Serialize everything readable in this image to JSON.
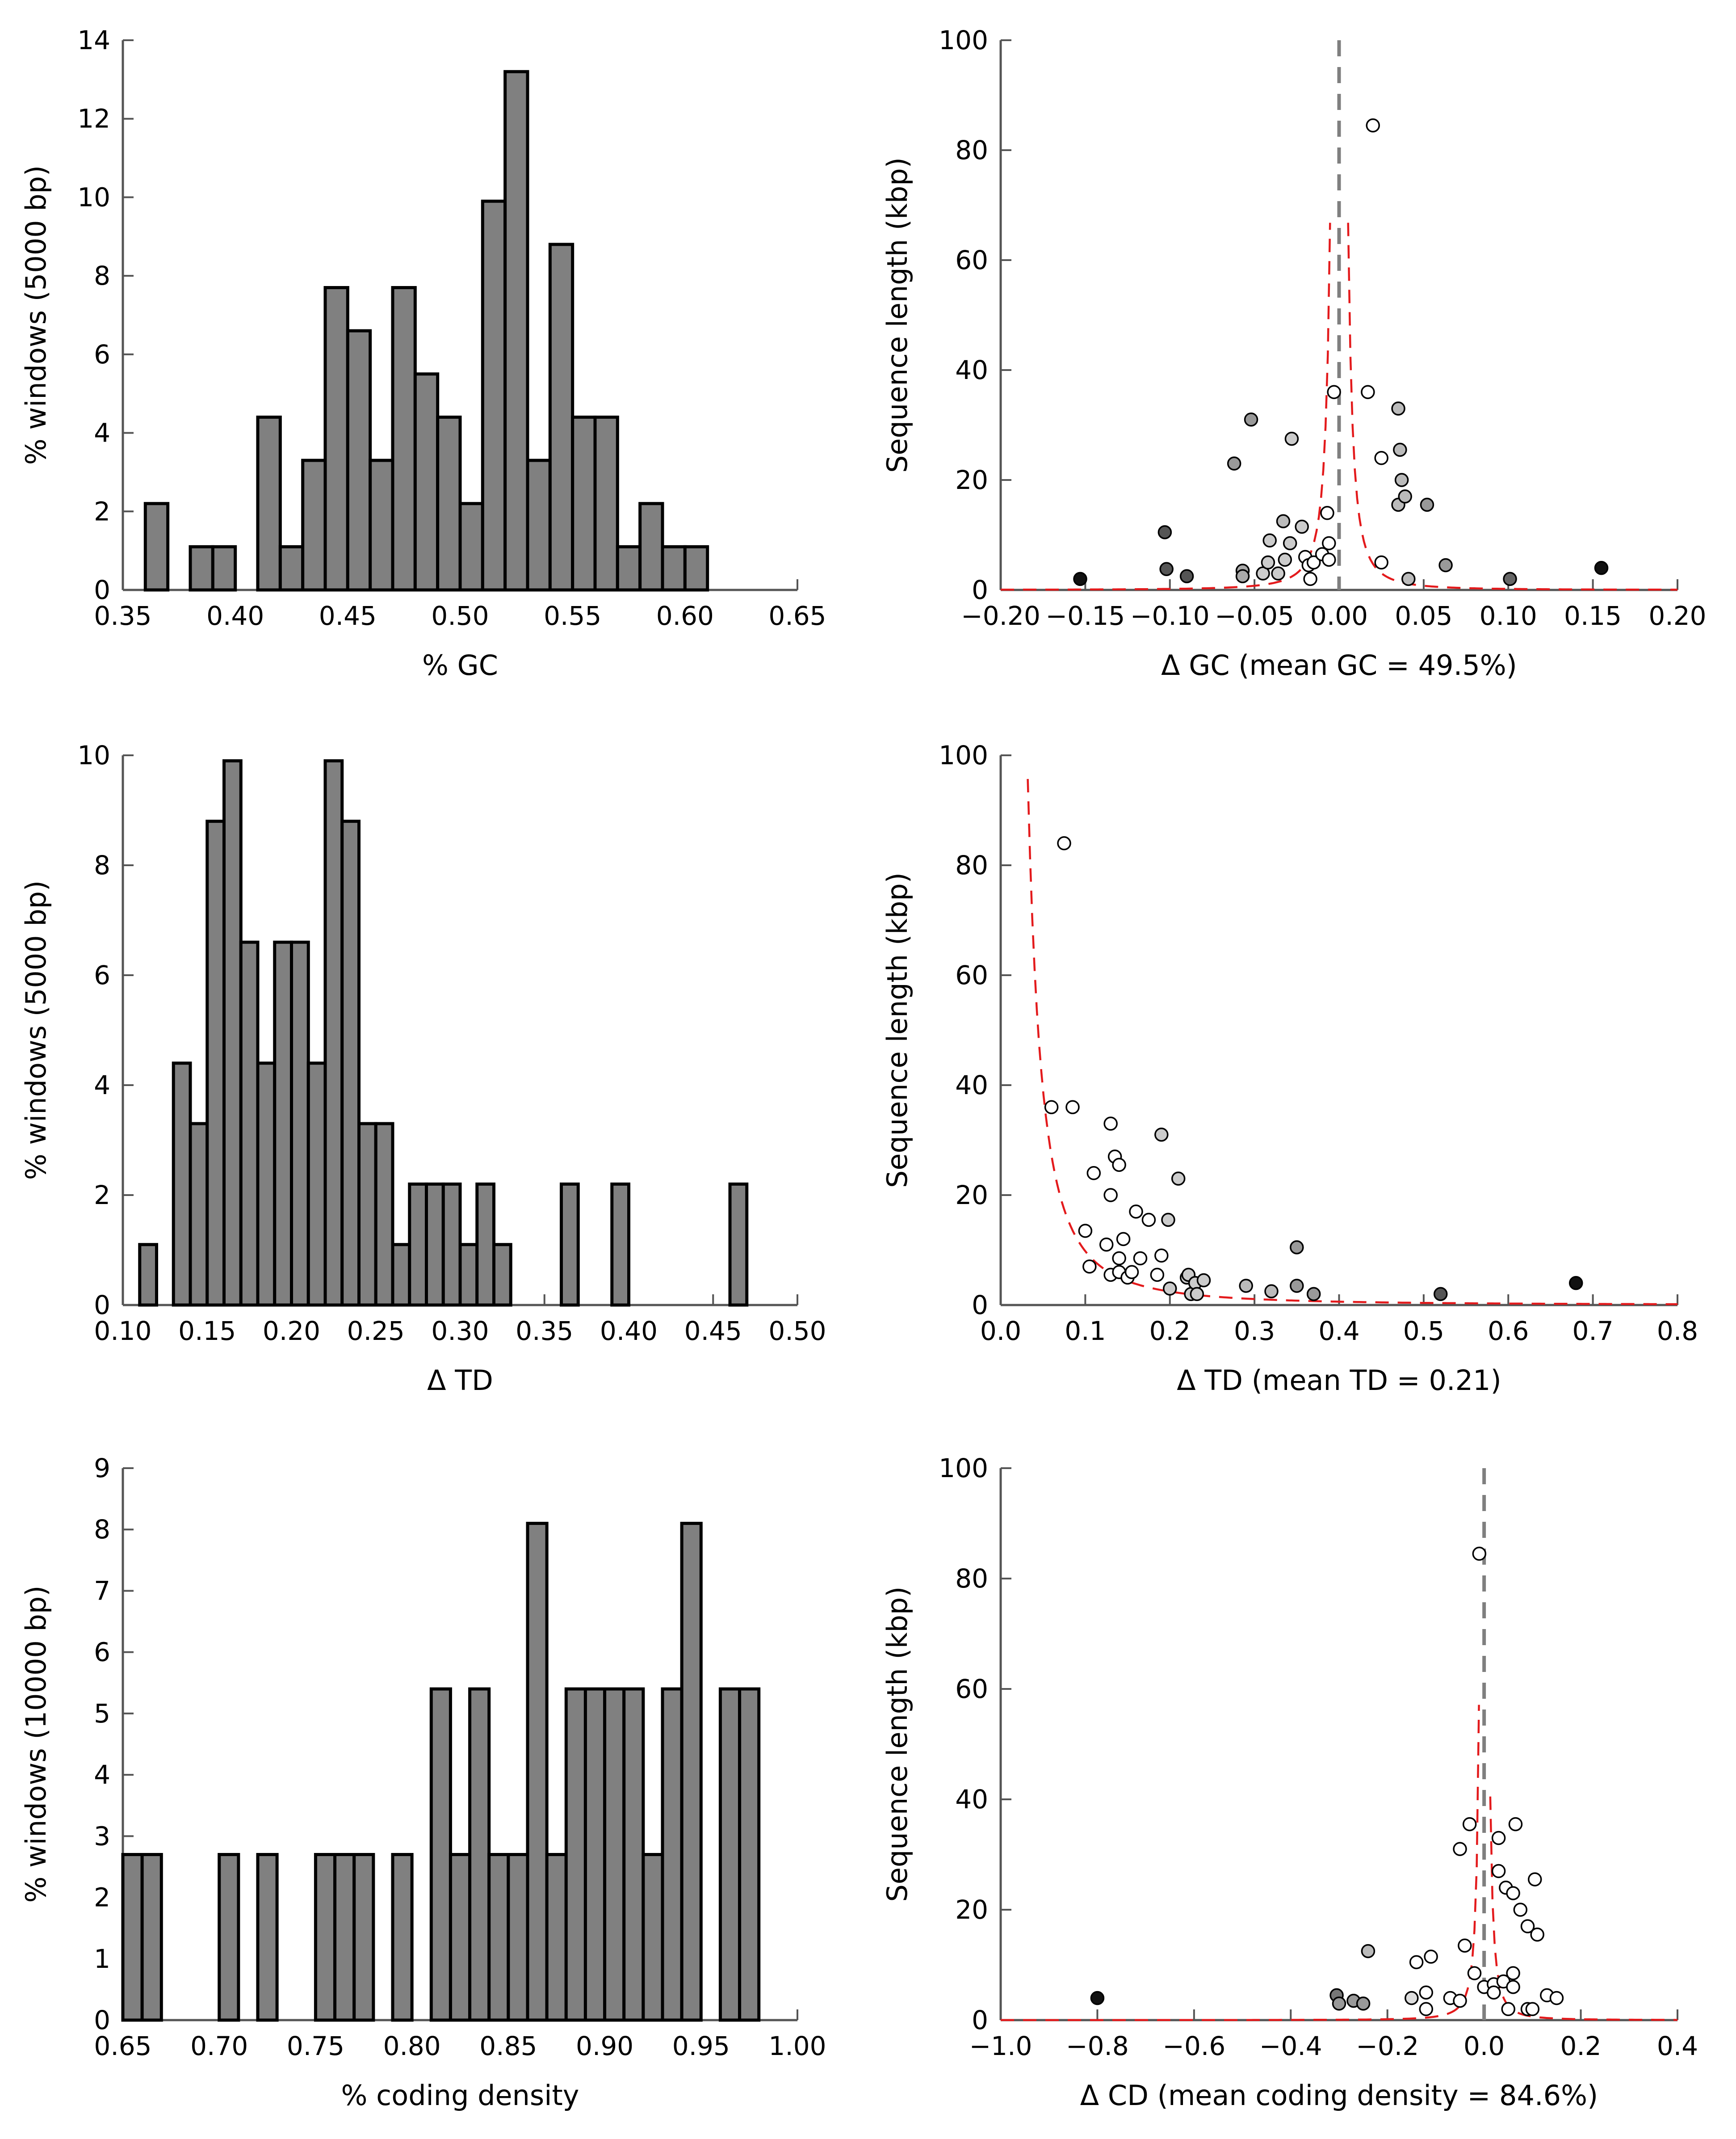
{
  "chart_data": [
    {
      "type": "bar",
      "panel": "a",
      "xlabel": "% GC",
      "ylabel": "% windows (5000 bp)",
      "xlim": [
        0.35,
        0.65
      ],
      "ylim": [
        0,
        14
      ],
      "xticks": [
        "0.35",
        "0.40",
        "0.45",
        "0.50",
        "0.55",
        "0.60",
        "0.65"
      ],
      "yticks": [
        "0",
        "2",
        "4",
        "6",
        "8",
        "10",
        "12",
        "14"
      ],
      "bin_width": 0.01,
      "bin_starts": [
        0.36,
        0.37,
        0.38,
        0.39,
        0.4,
        0.41,
        0.42,
        0.43,
        0.44,
        0.45,
        0.46,
        0.47,
        0.48,
        0.49,
        0.5,
        0.51,
        0.52,
        0.53,
        0.54,
        0.55,
        0.56,
        0.57,
        0.58,
        0.59,
        0.6
      ],
      "values": [
        2.2,
        0,
        1.1,
        1.1,
        0,
        4.4,
        1.1,
        3.3,
        7.7,
        6.6,
        3.3,
        7.7,
        5.5,
        4.4,
        2.2,
        9.9,
        13.2,
        3.3,
        8.8,
        4.4,
        4.4,
        1.1,
        2.2,
        1.1,
        1.1
      ],
      "bar_color": "#808080"
    },
    {
      "type": "scatter",
      "panel": "b",
      "xlabel": "Δ GC (mean GC = 49.5%)",
      "ylabel": "Sequence length (kbp)",
      "xlim": [
        -0.2,
        0.2
      ],
      "ylim": [
        0,
        100
      ],
      "xticks": [
        "−0.20",
        "−0.15",
        "−0.10",
        "−0.05",
        "0.00",
        "0.05",
        "0.10",
        "0.15",
        "0.20"
      ],
      "yticks": [
        "0",
        "20",
        "40",
        "60",
        "80",
        "100"
      ],
      "vline_x": 0,
      "curve": {
        "type": "symmetric",
        "k": 1.9,
        "offset": 0.0,
        "ymax": 97,
        "color": "#e31a1c"
      },
      "points": [
        [
          -0.153,
          2,
          "#111111"
        ],
        [
          -0.103,
          10.5,
          "#555555"
        ],
        [
          -0.102,
          3.8,
          "#555555"
        ],
        [
          -0.09,
          2.5,
          "#555555"
        ],
        [
          -0.062,
          23,
          "#999999"
        ],
        [
          -0.057,
          3.5,
          "#aaaaaa"
        ],
        [
          -0.057,
          2.5,
          "#aaaaaa"
        ],
        [
          -0.052,
          31,
          "#999999"
        ],
        [
          -0.045,
          3,
          "#cccccc"
        ],
        [
          -0.042,
          5,
          "#cccccc"
        ],
        [
          -0.041,
          9,
          "#cccccc"
        ],
        [
          -0.036,
          3,
          "#cccccc"
        ],
        [
          -0.033,
          12.5,
          "#bbbbbb"
        ],
        [
          -0.032,
          5.5,
          "#cccccc"
        ],
        [
          -0.029,
          8.5,
          "#cccccc"
        ],
        [
          -0.028,
          27.5,
          "#cccccc"
        ],
        [
          -0.022,
          11.5,
          "#cccccc"
        ],
        [
          -0.02,
          6,
          "#ffffff"
        ],
        [
          -0.018,
          4.5,
          "#ffffff"
        ],
        [
          -0.017,
          2,
          "#ffffff"
        ],
        [
          -0.015,
          5,
          "#ffffff"
        ],
        [
          -0.01,
          6.5,
          "#ffffff"
        ],
        [
          -0.007,
          14,
          "#ffffff"
        ],
        [
          -0.006,
          5.5,
          "#ffffff"
        ],
        [
          -0.006,
          8.5,
          "#ffffff"
        ],
        [
          -0.003,
          36,
          "#ffffff"
        ],
        [
          0.017,
          36,
          "#ffffff"
        ],
        [
          0.02,
          84.5,
          "#ffffff"
        ],
        [
          0.025,
          24,
          "#ffffff"
        ],
        [
          0.025,
          5,
          "#ffffff"
        ],
        [
          0.035,
          33,
          "#bbbbbb"
        ],
        [
          0.035,
          15.5,
          "#bbbbbb"
        ],
        [
          0.036,
          25.5,
          "#bbbbbb"
        ],
        [
          0.037,
          20,
          "#bbbbbb"
        ],
        [
          0.039,
          17,
          "#bbbbbb"
        ],
        [
          0.041,
          2,
          "#bbbbbb"
        ],
        [
          0.052,
          15.5,
          "#999999"
        ],
        [
          0.063,
          4.5,
          "#999999"
        ],
        [
          0.101,
          2,
          "#666666"
        ],
        [
          0.155,
          4,
          "#111111"
        ]
      ]
    },
    {
      "type": "bar",
      "panel": "c",
      "xlabel": "Δ TD",
      "ylabel": "% windows (5000 bp)",
      "xlim": [
        0.1,
        0.5
      ],
      "ylim": [
        0,
        10
      ],
      "xticks": [
        "0.10",
        "0.15",
        "0.20",
        "0.25",
        "0.30",
        "0.35",
        "0.40",
        "0.45",
        "0.50"
      ],
      "yticks": [
        "0",
        "2",
        "4",
        "6",
        "8",
        "10"
      ],
      "bin_width": 0.01,
      "bin_starts": [
        0.11,
        0.12,
        0.13,
        0.14,
        0.15,
        0.16,
        0.17,
        0.18,
        0.19,
        0.2,
        0.21,
        0.22,
        0.23,
        0.24,
        0.25,
        0.26,
        0.27,
        0.28,
        0.29,
        0.3,
        0.31,
        0.32,
        0.33,
        0.34,
        0.35,
        0.36,
        0.37,
        0.38,
        0.39,
        0.4,
        0.41,
        0.42,
        0.43,
        0.44,
        0.45,
        0.46
      ],
      "values": [
        1.1,
        0,
        4.4,
        3.3,
        8.8,
        9.9,
        6.6,
        4.4,
        6.6,
        6.6,
        4.4,
        9.9,
        8.8,
        3.3,
        3.3,
        1.1,
        2.2,
        2.2,
        2.2,
        1.1,
        2.2,
        1.1,
        0,
        0,
        0,
        2.2,
        0,
        0,
        2.2,
        0,
        0,
        0,
        0,
        0,
        0,
        2.2
      ],
      "bar_color": "#808080"
    },
    {
      "type": "scatter",
      "panel": "d",
      "xlabel": "Δ TD (mean TD = 0.21)",
      "ylabel": "Sequence length (kbp)",
      "xlim": [
        0.0,
        0.8
      ],
      "ylim": [
        0,
        100
      ],
      "xticks": [
        "0.0",
        "0.1",
        "0.2",
        "0.3",
        "0.4",
        "0.5",
        "0.6",
        "0.7",
        "0.8"
      ],
      "yticks": [
        "0",
        "20",
        "40",
        "60",
        "80",
        "100"
      ],
      "curve": {
        "type": "one-sided",
        "k": 9.8,
        "offset": 0.0,
        "ymax": 98,
        "color": "#e31a1c"
      },
      "points": [
        [
          0.06,
          36,
          "#ffffff"
        ],
        [
          0.075,
          84,
          "#ffffff"
        ],
        [
          0.085,
          36,
          "#ffffff"
        ],
        [
          0.1,
          13.5,
          "#ffffff"
        ],
        [
          0.105,
          7,
          "#ffffff"
        ],
        [
          0.11,
          24,
          "#ffffff"
        ],
        [
          0.125,
          11,
          "#ffffff"
        ],
        [
          0.13,
          33,
          "#ffffff"
        ],
        [
          0.13,
          20,
          "#ffffff"
        ],
        [
          0.135,
          27,
          "#ffffff"
        ],
        [
          0.14,
          25.5,
          "#ffffff"
        ],
        [
          0.13,
          5.5,
          "#ffffff"
        ],
        [
          0.14,
          8.5,
          "#ffffff"
        ],
        [
          0.14,
          6,
          "#ffffff"
        ],
        [
          0.145,
          12,
          "#ffffff"
        ],
        [
          0.15,
          5,
          "#ffffff"
        ],
        [
          0.155,
          6,
          "#ffffff"
        ],
        [
          0.16,
          17,
          "#ffffff"
        ],
        [
          0.165,
          8.5,
          "#ffffff"
        ],
        [
          0.175,
          15.5,
          "#ffffff"
        ],
        [
          0.185,
          5.5,
          "#ffffff"
        ],
        [
          0.19,
          9,
          "#ffffff"
        ],
        [
          0.19,
          31,
          "#cccccc"
        ],
        [
          0.198,
          15.5,
          "#cccccc"
        ],
        [
          0.2,
          3,
          "#cccccc"
        ],
        [
          0.21,
          23,
          "#cccccc"
        ],
        [
          0.22,
          5,
          "#cccccc"
        ],
        [
          0.222,
          5.5,
          "#cccccc"
        ],
        [
          0.225,
          2,
          "#cccccc"
        ],
        [
          0.23,
          4,
          "#cccccc"
        ],
        [
          0.232,
          2,
          "#cccccc"
        ],
        [
          0.24,
          4.5,
          "#cccccc"
        ],
        [
          0.29,
          3.5,
          "#bbbbbb"
        ],
        [
          0.32,
          2.5,
          "#bbbbbb"
        ],
        [
          0.35,
          10.5,
          "#999999"
        ],
        [
          0.35,
          3.5,
          "#999999"
        ],
        [
          0.37,
          2,
          "#999999"
        ],
        [
          0.52,
          2,
          "#555555"
        ],
        [
          0.68,
          4,
          "#111111"
        ]
      ]
    },
    {
      "type": "bar",
      "panel": "e",
      "xlabel": "% coding density",
      "ylabel": "% windows (10000 bp)",
      "xlim": [
        0.65,
        1.0
      ],
      "ylim": [
        0,
        9
      ],
      "xticks": [
        "0.65",
        "0.70",
        "0.75",
        "0.80",
        "0.85",
        "0.90",
        "0.95",
        "1.00"
      ],
      "yticks": [
        "0",
        "1",
        "2",
        "3",
        "4",
        "5",
        "6",
        "7",
        "8",
        "9"
      ],
      "bin_width": 0.01,
      "bin_starts": [
        0.65,
        0.66,
        0.67,
        0.68,
        0.69,
        0.7,
        0.71,
        0.72,
        0.73,
        0.74,
        0.75,
        0.76,
        0.77,
        0.78,
        0.79,
        0.8,
        0.81,
        0.82,
        0.83,
        0.84,
        0.85,
        0.86,
        0.87,
        0.88,
        0.89,
        0.9,
        0.91,
        0.92,
        0.93,
        0.94,
        0.95,
        0.96,
        0.97
      ],
      "values": [
        2.7,
        2.7,
        0,
        0,
        0,
        2.7,
        0,
        2.7,
        0,
        0,
        2.7,
        2.7,
        2.7,
        0,
        2.7,
        0,
        5.4,
        2.7,
        5.4,
        2.7,
        2.7,
        8.1,
        2.7,
        5.4,
        5.4,
        5.4,
        5.4,
        2.7,
        5.4,
        8.1,
        0,
        5.4,
        5.4
      ],
      "bar_color": "#808080"
    },
    {
      "type": "scatter",
      "panel": "f",
      "xlabel": "Δ CD (mean coding density = 84.6%)",
      "ylabel": "Sequence length (kbp)",
      "xlim": [
        -1.0,
        0.4
      ],
      "ylim": [
        0,
        100
      ],
      "xticks": [
        "−1.0",
        "−0.8",
        "−0.6",
        "−0.4",
        "−0.2",
        "0.0",
        "0.2",
        "0.4"
      ],
      "yticks": [
        "0",
        "20",
        "40",
        "60",
        "80",
        "100"
      ],
      "vline_x": 0,
      "curve": {
        "type": "symmetric",
        "k": 6.5,
        "offset": 0.0,
        "ymax": 99,
        "color": "#e31a1c"
      },
      "points": [
        [
          -0.8,
          4,
          "#111111"
        ],
        [
          -0.305,
          4.5,
          "#777777"
        ],
        [
          -0.3,
          3,
          "#999999"
        ],
        [
          -0.27,
          3.5,
          "#999999"
        ],
        [
          -0.25,
          3,
          "#999999"
        ],
        [
          -0.24,
          12.5,
          "#bbbbbb"
        ],
        [
          -0.15,
          4,
          "#dddddd"
        ],
        [
          -0.14,
          10.5,
          "#ffffff"
        ],
        [
          -0.12,
          2,
          "#ffffff"
        ],
        [
          -0.12,
          5,
          "#ffffff"
        ],
        [
          -0.11,
          11.5,
          "#ffffff"
        ],
        [
          -0.07,
          4,
          "#ffffff"
        ],
        [
          -0.05,
          3.5,
          "#ffffff"
        ],
        [
          -0.05,
          31,
          "#ffffff"
        ],
        [
          -0.04,
          13.5,
          "#ffffff"
        ],
        [
          -0.03,
          35.5,
          "#ffffff"
        ],
        [
          -0.02,
          8.5,
          "#ffffff"
        ],
        [
          -0.01,
          84.5,
          "#ffffff"
        ],
        [
          0.0,
          6,
          "#ffffff"
        ],
        [
          0.02,
          6.5,
          "#ffffff"
        ],
        [
          0.02,
          5,
          "#ffffff"
        ],
        [
          0.03,
          33,
          "#ffffff"
        ],
        [
          0.03,
          27,
          "#ffffff"
        ],
        [
          0.04,
          7,
          "#ffffff"
        ],
        [
          0.045,
          24,
          "#ffffff"
        ],
        [
          0.05,
          2,
          "#ffffff"
        ],
        [
          0.06,
          23,
          "#ffffff"
        ],
        [
          0.06,
          6,
          "#ffffff"
        ],
        [
          0.06,
          8.5,
          "#ffffff"
        ],
        [
          0.065,
          35.5,
          "#ffffff"
        ],
        [
          0.075,
          20,
          "#ffffff"
        ],
        [
          0.09,
          2,
          "#ffffff"
        ],
        [
          0.09,
          17,
          "#ffffff"
        ],
        [
          0.1,
          2,
          "#ffffff"
        ],
        [
          0.105,
          25.5,
          "#ffffff"
        ],
        [
          0.11,
          15.5,
          "#ffffff"
        ],
        [
          0.13,
          4.5,
          "#ffffff"
        ],
        [
          0.15,
          4,
          "#ffffff"
        ]
      ]
    }
  ]
}
